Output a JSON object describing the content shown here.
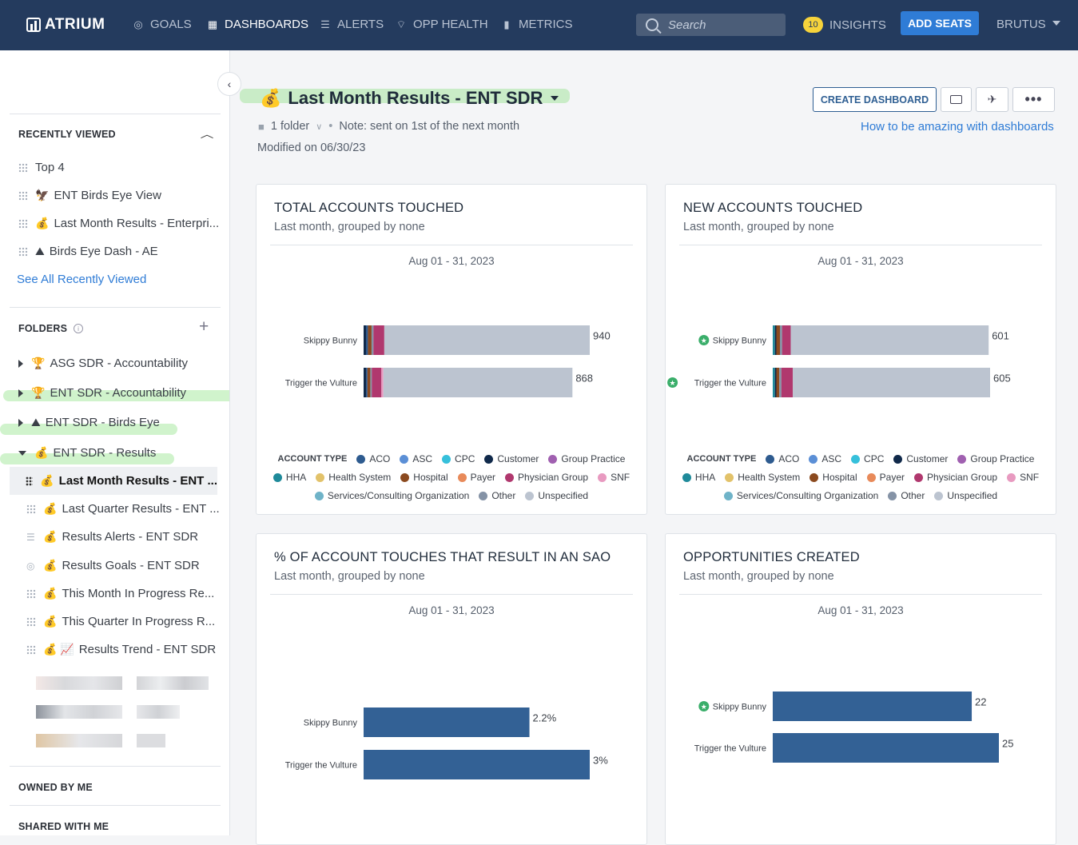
{
  "app": {
    "name": "ATRIUM"
  },
  "nav": [
    {
      "label": "GOALS",
      "icon": "goals-icon",
      "active": false
    },
    {
      "label": "DASHBOARDS",
      "icon": "dashboards-icon",
      "active": true
    },
    {
      "label": "ALERTS",
      "icon": "alerts-icon",
      "active": false
    },
    {
      "label": "OPP HEALTH",
      "icon": "opp-health-icon",
      "active": false
    },
    {
      "label": "METRICS",
      "icon": "metrics-icon",
      "active": false
    }
  ],
  "search": {
    "placeholder": "Search"
  },
  "insights": {
    "count": "10",
    "label": "INSIGHTS"
  },
  "add_seats": "ADD SEATS",
  "user": "BRUTUS",
  "sidebar": {
    "recently_viewed_header": "RECENTLY VIEWED",
    "recently_viewed": [
      {
        "emoji": "",
        "label": "Top 4"
      },
      {
        "emoji": "🦅",
        "label": "ENT Birds Eye View"
      },
      {
        "emoji": "💰",
        "label": "Last Month Results - Enterpri..."
      },
      {
        "emoji": "⛰",
        "label": "Birds Eye Dash - AE"
      }
    ],
    "see_all": "See All Recently Viewed",
    "folders_header": "FOLDERS",
    "folders": [
      {
        "emoji": "🏆",
        "label": "ASG SDR - Accountability",
        "expanded": false
      },
      {
        "emoji": "🏆",
        "label": "ENT SDR - Accountability",
        "expanded": false
      },
      {
        "emoji": "⛰",
        "label": "ENT SDR - Birds Eye",
        "expanded": false
      },
      {
        "emoji": "💰",
        "label": "ENT SDR - Results",
        "expanded": true
      }
    ],
    "folder_items": [
      {
        "icon": "grid",
        "emoji": "💰",
        "label": "Last Month Results - ENT ...",
        "selected": true
      },
      {
        "icon": "grid",
        "emoji": "💰",
        "label": "Last Quarter Results - ENT ...",
        "selected": false
      },
      {
        "icon": "list",
        "emoji": "💰",
        "label": "Results Alerts - ENT SDR",
        "selected": false
      },
      {
        "icon": "goal",
        "emoji": "💰",
        "label": "Results Goals - ENT SDR",
        "selected": false
      },
      {
        "icon": "grid",
        "emoji": "💰",
        "label": "This Month In Progress Re...",
        "selected": false
      },
      {
        "icon": "grid",
        "emoji": "💰",
        "label": "This Quarter In Progress R...",
        "selected": false
      },
      {
        "icon": "grid",
        "emoji": "💰 📈",
        "label": "Results Trend - ENT SDR",
        "selected": false
      }
    ],
    "owned_header": "OWNED BY ME",
    "shared_header": "SHARED WITH ME"
  },
  "dashboard": {
    "emoji": "💰",
    "title": "Last Month Results - ENT SDR",
    "folder_count": "1 folder",
    "note": "Note: sent on 1st of the next month",
    "modified": "Modified on 06/30/23",
    "create_button": "CREATE DASHBOARD",
    "help_link": "How to be amazing with dashboards"
  },
  "colors": {
    "ACO": "#2e5b8f",
    "ASC": "#5b8fd6",
    "CPC": "#36c0db",
    "Customer": "#10294a",
    "Group Practice": "#a060b0",
    "HHA": "#1f8a9a",
    "Health System": "#e2c26a",
    "Hospital": "#8b4a1f",
    "Payer": "#e88a5a",
    "Physician Group": "#b0386e",
    "SNF": "#e89ac0",
    "Services/Consulting Organization": "#6fb3c8",
    "Other": "#8593a6",
    "Unspecified": "#bcc4d0",
    "bar": "#336195"
  },
  "legend": {
    "title": "ACCOUNT TYPE",
    "items": [
      "ACO",
      "ASC",
      "CPC",
      "Customer",
      "Group Practice",
      "HHA",
      "Health System",
      "Hospital",
      "Payer",
      "Physician Group",
      "SNF",
      "Services/Consulting Organization",
      "Other",
      "Unspecified"
    ]
  },
  "chart_data": [
    {
      "type": "bar",
      "stacked": true,
      "orientation": "horizontal",
      "title": "TOTAL ACCOUNTS TOUCHED",
      "subtitle": "Last month, grouped by none",
      "date_range": "Aug 01 - 31, 2023",
      "categories": [
        "Skippy Bunny",
        "Trigger the Vulture"
      ],
      "starred": [
        false,
        false
      ],
      "totals": [
        940,
        868
      ],
      "xlim": [
        0,
        940
      ],
      "series": [
        {
          "name": "Customer",
          "values": [
            10,
            10
          ]
        },
        {
          "name": "ACO",
          "values": [
            8,
            6
          ]
        },
        {
          "name": "Hospital",
          "values": [
            15,
            12
          ]
        },
        {
          "name": "Other",
          "values": [
            8,
            6
          ]
        },
        {
          "name": "Physician Group",
          "values": [
            45,
            40
          ]
        },
        {
          "name": "SNF",
          "values": [
            0,
            8
          ]
        },
        {
          "name": "Unspecified",
          "values": [
            854,
            786
          ]
        }
      ]
    },
    {
      "type": "bar",
      "stacked": true,
      "orientation": "horizontal",
      "title": "NEW ACCOUNTS TOUCHED",
      "subtitle": "Last month, grouped by none",
      "date_range": "Aug 01 - 31, 2023",
      "categories": [
        "Skippy Bunny",
        "Trigger the Vulture"
      ],
      "starred": [
        true,
        true
      ],
      "totals": [
        601,
        605
      ],
      "xlim": [
        0,
        605
      ],
      "series": [
        {
          "name": "HHA",
          "values": [
            6,
            6
          ]
        },
        {
          "name": "Customer",
          "values": [
            4,
            4
          ]
        },
        {
          "name": "Hospital",
          "values": [
            10,
            8
          ]
        },
        {
          "name": "Other",
          "values": [
            6,
            6
          ]
        },
        {
          "name": "Physician Group",
          "values": [
            24,
            32
          ]
        },
        {
          "name": "Unspecified",
          "values": [
            551,
            549
          ]
        }
      ]
    },
    {
      "type": "bar",
      "orientation": "horizontal",
      "title": "% OF ACCOUNT TOUCHES THAT RESULT IN AN SAO",
      "subtitle": "Last month, grouped by none",
      "date_range": "Aug 01 - 31, 2023",
      "categories": [
        "Skippy Bunny",
        "Trigger the Vulture"
      ],
      "starred": [
        false,
        false
      ],
      "values": [
        2.2,
        3
      ],
      "labels": [
        "2.2%",
        "3%"
      ],
      "xlim": [
        0,
        3
      ]
    },
    {
      "type": "bar",
      "orientation": "horizontal",
      "title": "OPPORTUNITIES CREATED",
      "subtitle": "Last month, grouped by none",
      "date_range": "Aug 01 - 31, 2023",
      "categories": [
        "Skippy Bunny",
        "Trigger the Vulture"
      ],
      "starred": [
        true,
        false
      ],
      "values": [
        22,
        25
      ],
      "labels": [
        "22",
        "25"
      ],
      "xlim": [
        0,
        25
      ]
    }
  ]
}
